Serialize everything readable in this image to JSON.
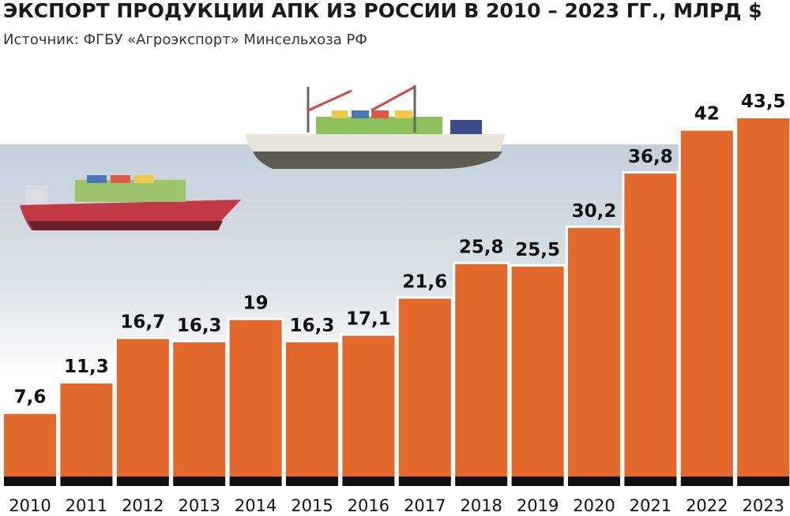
{
  "chart_data": {
    "type": "bar",
    "title": "ЭКСПОРТ ПРОДУКЦИИ АПК ИЗ РОССИИ В 2010 – 2023 ГГ., МЛРД $",
    "subtitle": "Источник: ФГБУ «Агроэкспорт» Минсельхоза РФ",
    "categories": [
      "2010",
      "2011",
      "2012",
      "2013",
      "2014",
      "2015",
      "2016",
      "2017",
      "2018",
      "2019",
      "2020",
      "2021",
      "2022",
      "2023"
    ],
    "values": [
      7.6,
      11.3,
      16.7,
      16.3,
      19,
      16.3,
      17.1,
      21.6,
      25.8,
      25.5,
      30.2,
      36.8,
      42,
      43.5
    ],
    "value_labels": [
      "7,6",
      "11,3",
      "16,7",
      "16,3",
      "19",
      "16,3",
      "17,1",
      "21,6",
      "25,8",
      "25,5",
      "30,2",
      "36,8",
      "42",
      "43,5"
    ],
    "color": "#e2692b"
  }
}
